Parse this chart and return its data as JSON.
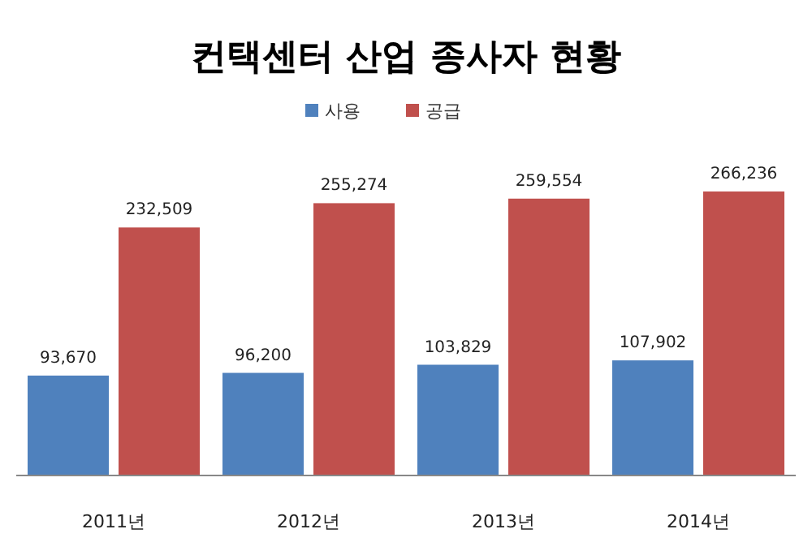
{
  "chart_data": {
    "type": "bar",
    "title": "컨택센터 산업 종사자 현황",
    "categories": [
      "2011년",
      "2012년",
      "2013년",
      "2014년"
    ],
    "series": [
      {
        "name": "사용",
        "color": "#4f81bd",
        "values": [
          93670,
          96200,
          103829,
          107902
        ],
        "value_labels": [
          "93,670",
          "96,200",
          "103,829",
          "107,902"
        ]
      },
      {
        "name": "공급",
        "color": "#c0504d",
        "values": [
          232509,
          255274,
          259554,
          266236
        ],
        "value_labels": [
          "232,509",
          "255,274",
          "259,554",
          "266,236"
        ]
      }
    ],
    "legend": "top",
    "grid": false
  }
}
